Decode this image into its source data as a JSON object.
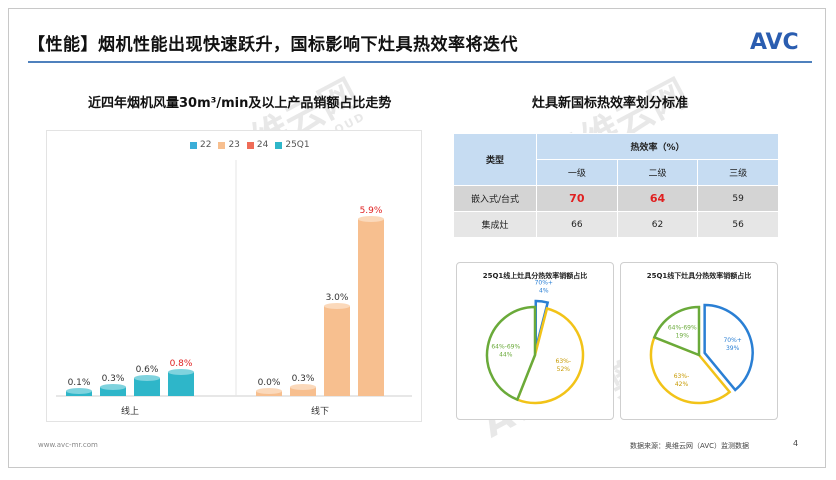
{
  "slide": {
    "title": "【性能】烟机性能出现快速跃升，国标影响下灶具热效率将迭代",
    "logo_text": "AVC",
    "footer_url": "www.avc-mr.com",
    "footer_source": "数据来源：奥维云网（AVC）监测数据",
    "page_number": "4",
    "watermark_cn": "奥维云网",
    "watermark_en": "ALL VIEW CLOUD",
    "watermark_logo": "AVC"
  },
  "bar_section_title": "近四年烟机风量30m³/min及以上产品销额占比走势",
  "table_section_title": "灶具新国标热效率划分标准",
  "colors": {
    "accent_blue": "#4f81bd",
    "s22": "#3aaed8",
    "s23": "#f7bf8f",
    "s24": "#ef6c57",
    "s25q1": "#2eb6c9",
    "red_label": "#e02020",
    "pie_green": "#6aaa3a",
    "pie_yellow": "#f2c318",
    "pie_blue": "#2a7fd4"
  },
  "chart_data": [
    {
      "type": "bar",
      "title": "近四年烟机风量30m³/min及以上产品销额占比走势",
      "categories": [
        "线上",
        "线下"
      ],
      "series": [
        {
          "name": "22",
          "values": [
            0.1,
            0.0
          ],
          "labels": [
            "0.1%",
            "0.0%"
          ]
        },
        {
          "name": "23",
          "values": [
            0.3,
            0.3
          ],
          "labels": [
            "0.3%",
            "0.3%"
          ]
        },
        {
          "name": "24",
          "values": [
            0.6,
            3.0
          ],
          "labels": [
            "0.6%",
            "3.0%"
          ]
        },
        {
          "name": "25Q1",
          "values": [
            0.8,
            5.9
          ],
          "labels": [
            "0.8%",
            "5.9%"
          ]
        }
      ],
      "highlighted_labels": [
        "0.8%",
        "5.9%"
      ],
      "unit": "%",
      "ylim": [
        0,
        7
      ],
      "legend_position": "top",
      "grid": false
    },
    {
      "type": "table",
      "title": "灶具新国标热效率划分标准",
      "header": {
        "row_label": "类型",
        "group_label": "热效率（%）",
        "columns": [
          "一级",
          "二级",
          "三级"
        ]
      },
      "rows": [
        {
          "label": "嵌入式/台式",
          "values": [
            "70",
            "64",
            "59"
          ],
          "highlight": [
            true,
            true,
            false
          ]
        },
        {
          "label": "集成灶",
          "values": [
            "66",
            "62",
            "56"
          ],
          "highlight": [
            false,
            false,
            false
          ]
        }
      ]
    },
    {
      "type": "pie",
      "title": "25Q1线上灶具分热效率销额占比",
      "slices": [
        {
          "label": "70%+",
          "value": 4,
          "text": "4%",
          "color": "#2a7fd4",
          "exploded": true
        },
        {
          "label": "63%-",
          "value": 52,
          "text": "52%",
          "color": "#f2c318",
          "exploded": false
        },
        {
          "label": "64%-69%",
          "value": 44,
          "text": "44%",
          "color": "#6aaa3a",
          "exploded": false
        }
      ]
    },
    {
      "type": "pie",
      "title": "25Q1线下灶具分热效率销额占比",
      "slices": [
        {
          "label": "70%+",
          "value": 39,
          "text": "39%",
          "color": "#2a7fd4",
          "exploded": true
        },
        {
          "label": "63%-",
          "value": 42,
          "text": "42%",
          "color": "#f2c318",
          "exploded": false
        },
        {
          "label": "64%-69%",
          "value": 19,
          "text": "19%",
          "color": "#6aaa3a",
          "exploded": false
        }
      ]
    }
  ]
}
